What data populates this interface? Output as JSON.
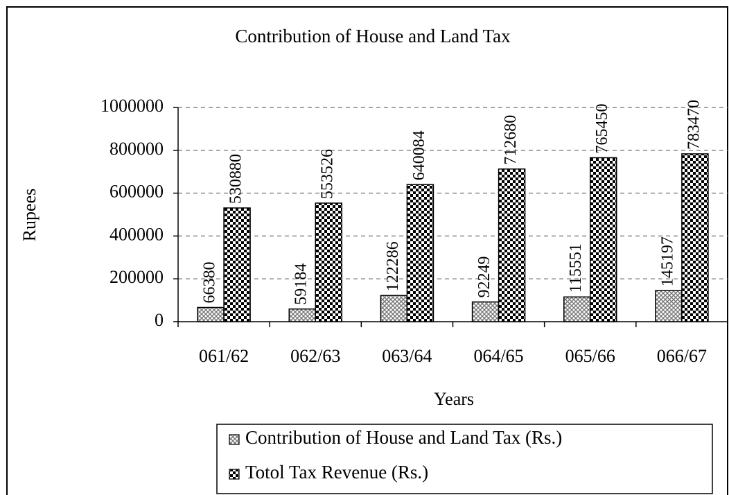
{
  "chart_data": {
    "type": "bar",
    "title": "Contribution of House and Land Tax",
    "x_label": "Years",
    "y_label": "Rupees",
    "categories": [
      "061/62",
      "062/63",
      "063/64",
      "064/65",
      "065/66",
      "066/67"
    ],
    "series": [
      {
        "name": "Contribution of House and Land Tax (Rs.)",
        "color": "#808080",
        "pattern": "crosshatch",
        "values": [
          66380,
          59184,
          122286,
          92249,
          115551,
          145197
        ]
      },
      {
        "name": "Totol Tax Revenue (Rs.)",
        "color": "#000000",
        "pattern": "checker",
        "values": [
          530880,
          553526,
          640084,
          712680,
          765450,
          783470
        ]
      }
    ],
    "ylim": [
      0,
      1000000
    ],
    "yticks": [
      0,
      200000,
      400000,
      600000,
      800000,
      1000000
    ],
    "grid": true
  }
}
